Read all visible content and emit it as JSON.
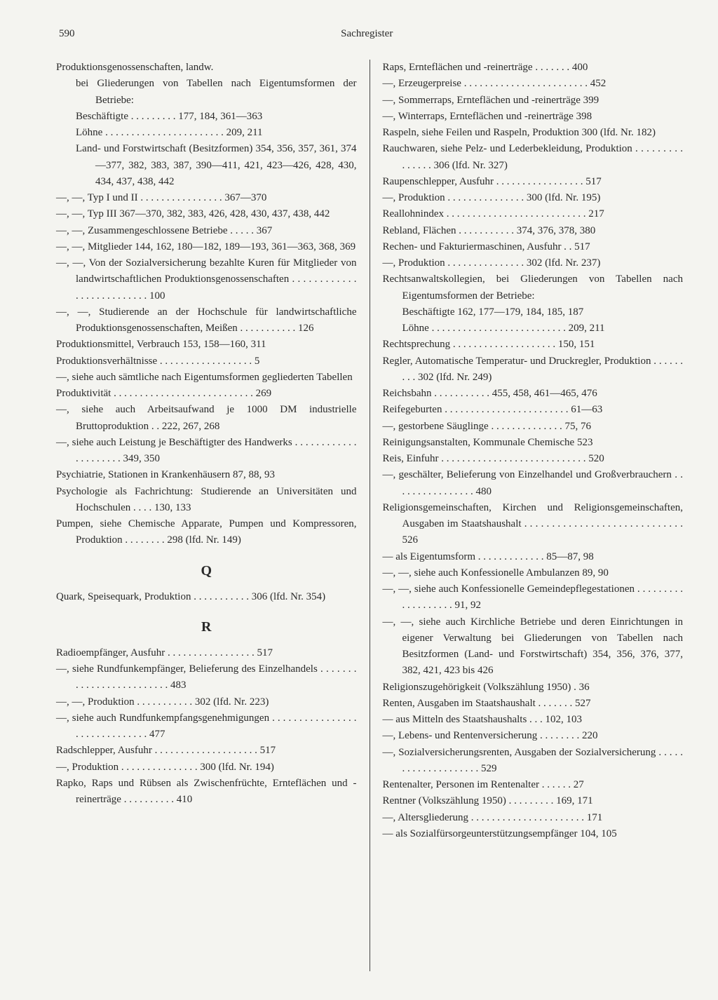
{
  "header": {
    "pageNum": "590",
    "title": "Sachregister"
  },
  "letters": {
    "Q": "Q",
    "R": "R"
  },
  "left": [
    {
      "cls": "entry",
      "t": "Produktionsgenossenschaften, landw."
    },
    {
      "cls": "entry sub",
      "t": "bei Gliederungen von Tabellen nach Eigentumsformen der Betriebe:"
    },
    {
      "cls": "entry sub",
      "t": "Beschäftigte . . . . . . . . . 177, 184, 361—363"
    },
    {
      "cls": "entry sub",
      "t": "Löhne . . . . . . . . . . . . . . . . . . . . . . . 209, 211"
    },
    {
      "cls": "entry sub",
      "t": "Land- und Forstwirtschaft (Besitzformen) 354, 356, 357, 361, 374—377, 382, 383, 387, 390—411, 421, 423—426, 428, 430, 434, 437, 438, 442"
    },
    {
      "cls": "entry",
      "t": "—, —, Typ I und II . . . . . . . . . . . . . . . . 367—370"
    },
    {
      "cls": "entry",
      "t": "—, —, Typ III 367—370, 382, 383, 426, 428, 430, 437, 438, 442"
    },
    {
      "cls": "entry",
      "t": "—, —, Zusammengeschlossene Betriebe . . . . . 367"
    },
    {
      "cls": "entry",
      "t": "—, —, Mitglieder 144, 162, 180—182, 189—193, 361—363, 368, 369"
    },
    {
      "cls": "entry",
      "t": "—, —, Von der Sozialversicherung bezahlte Kuren für Mitglieder von landwirtschaftlichen Produktionsgenossenschaften . . . . . . . . . . . . . . . . . . . . . . . . . . 100"
    },
    {
      "cls": "entry",
      "t": "—, —, Studierende an der Hochschule für landwirtschaftliche Produktionsgenossenschaften, Meißen . . . . . . . . . . . 126"
    },
    {
      "cls": "entry",
      "t": "Produktionsmittel, Verbrauch 153, 158—160, 311"
    },
    {
      "cls": "entry",
      "t": "Produktionsverhältnisse . . . . . . . . . . . . . . . . . .    5"
    },
    {
      "cls": "entry",
      "t": "—, siehe auch sämtliche nach Eigentumsformen gegliederten Tabellen"
    },
    {
      "cls": "entry",
      "t": "Produktivität . . . . . . . . . . . . . . . . . . . . . . . . . . . 269"
    },
    {
      "cls": "entry",
      "t": "—, siehe auch Arbeitsaufwand je 1000 DM industrielle Bruttoproduktion . . 222, 267, 268"
    },
    {
      "cls": "entry",
      "t": "—, siehe auch Leistung je Beschäftigter des Handwerks . . . . . . . . . . . . . . . . . . . . . 349, 350"
    },
    {
      "cls": "entry",
      "t": "Psychiatrie, Stationen in Krankenhäusern 87, 88, 93"
    },
    {
      "cls": "entry",
      "t": "Psychologie als Fachrichtung: Studierende an Universitäten und Hochschulen . . . . 130, 133"
    },
    {
      "cls": "entry",
      "t": "Pumpen, siehe Chemische Apparate, Pumpen und Kompressoren, Produktion . . . . . . . . 298 (lfd. Nr. 149)"
    },
    {
      "cls": "section-letter",
      "key": "Q"
    },
    {
      "cls": "entry",
      "t": "Quark, Speisequark, Produktion . . . . . . . . . . . 306 (lfd. Nr. 354)"
    },
    {
      "cls": "section-letter",
      "key": "R"
    },
    {
      "cls": "entry",
      "t": "Radioempfänger, Ausfuhr . . . . . . . . . . . . . . . . . 517"
    },
    {
      "cls": "entry",
      "t": "—, siehe Rundfunkempfänger, Belieferung des Einzelhandels . . . . . . . . . . . . . . . . . . . . . . . . . 483"
    },
    {
      "cls": "entry",
      "t": "—, —, Produktion . . . . . . . . . . . 302 (lfd. Nr. 223)"
    },
    {
      "cls": "entry",
      "t": "—, siehe auch Rundfunkempfangsgenehmigungen . . . . . . . . . . . . . . . . . . . . . . . . . . . . . . 477"
    },
    {
      "cls": "entry",
      "t": "Radschlepper, Ausfuhr . . . . . . . . . . . . . . . . . . . . 517"
    },
    {
      "cls": "entry",
      "t": "—, Produktion . . . . . . . . . . . . . . . 300 (lfd. Nr. 194)"
    },
    {
      "cls": "entry",
      "t": "Rapko, Raps und Rübsen als Zwischenfrüchte, Ernteflächen und -reinerträge . . . . . . . . . . 410"
    }
  ],
  "right": [
    {
      "cls": "entry",
      "t": "Raps, Ernteflächen und -reinerträge . . . . . . . 400"
    },
    {
      "cls": "entry",
      "t": "—, Erzeugerpreise . . . . . . . . . . . . . . . . . . . . . . . . 452"
    },
    {
      "cls": "entry",
      "t": "—, Sommerraps, Ernteflächen und -reinerträge 399"
    },
    {
      "cls": "entry",
      "t": "—, Winterraps, Ernteflächen und -reinerträge 398"
    },
    {
      "cls": "entry",
      "t": "Raspeln, siehe Feilen und Raspeln, Produktion 300 (lfd. Nr. 182)"
    },
    {
      "cls": "entry",
      "t": "Rauchwaren, siehe Pelz- und Lederbekleidung, Produktion . . . . . . . . . . . . . . . 306 (lfd. Nr. 327)"
    },
    {
      "cls": "entry",
      "t": "Raupenschlepper, Ausfuhr . . . . . . . . . . . . . . . . . 517"
    },
    {
      "cls": "entry",
      "t": "—, Produktion . . . . . . . . . . . . . . . 300 (lfd. Nr. 195)"
    },
    {
      "cls": "entry",
      "t": "Reallohnindex . . . . . . . . . . . . . . . . . . . . . . . . . . . 217"
    },
    {
      "cls": "entry",
      "t": "Rebland, Flächen . . . . . . . . . . . 374, 376, 378, 380"
    },
    {
      "cls": "entry",
      "t": "Rechen- und Fakturiermaschinen, Ausfuhr . . 517"
    },
    {
      "cls": "entry",
      "t": "—, Produktion . . . . . . . . . . . . . . . 302 (lfd. Nr. 237)"
    },
    {
      "cls": "entry",
      "t": "Rechtsanwaltskollegien, bei Gliederungen von Tabellen nach Eigentumsformen der Betriebe:"
    },
    {
      "cls": "entry sub",
      "t": "Beschäftigte 162, 177—179, 184, 185, 187"
    },
    {
      "cls": "entry sub",
      "t": "Löhne . . . . . . . . . . . . . . . . . . . . . . . . . . 209, 211"
    },
    {
      "cls": "entry",
      "t": "Rechtsprechung . . . . . . . . . . . . . . . . . . . . 150, 151"
    },
    {
      "cls": "entry",
      "t": "Regler, Automatische Temperatur- und Druckregler, Produktion . . . . . . . . . 302 (lfd. Nr. 249)"
    },
    {
      "cls": "entry",
      "t": "Reichsbahn . . . . . . . . . . . 455, 458, 461—465, 476"
    },
    {
      "cls": "entry",
      "t": "Reifegeburten . . . . . . . . . . . . . . . . . . . . . . . . 61—63"
    },
    {
      "cls": "entry",
      "t": "—, gestorbene Säuglinge . . . . . . . . . . . . . . 75,  76"
    },
    {
      "cls": "entry",
      "t": "Reinigungsanstalten, Kommunale Chemische 523"
    },
    {
      "cls": "entry",
      "t": "Reis, Einfuhr . . . . . . . . . . . . . . . . . . . . . . . . . . . . 520"
    },
    {
      "cls": "entry",
      "t": "—, geschälter, Belieferung von Einzelhandel und Großverbrauchern . . . . . . . . . . . . . . . . 480"
    },
    {
      "cls": "entry",
      "t": "Religionsgemeinschaften, Kirchen und Religionsgemeinschaften, Ausgaben im Staatshaushalt . . . . . . . . . . . . . . . . . . . . . . . . . . . . . 526"
    },
    {
      "cls": "entry",
      "t": "— als Eigentumsform . . . . . . . . . . . . . 85—87,  98"
    },
    {
      "cls": "entry",
      "t": "—, —, siehe auch Konfessionelle Ambulanzen 89, 90"
    },
    {
      "cls": "entry",
      "t": "—, —, siehe auch Konfessionelle Gemeindepflegestationen . . . . . . . . . . . . . . . . . . . 91,  92"
    },
    {
      "cls": "entry",
      "t": "—, —, siehe auch Kirchliche Betriebe und deren Einrichtungen in eigener Verwaltung bei Gliederungen von Tabellen nach Besitzformen (Land- und Forstwirtschaft) 354, 356, 376, 377, 382, 421, 423 bis 426"
    },
    {
      "cls": "entry",
      "t": "Religionszugehörigkeit (Volkszählung 1950) .   36"
    },
    {
      "cls": "entry",
      "t": "Renten, Ausgaben im Staatshaushalt . . . . . . . 527"
    },
    {
      "cls": "entry",
      "t": "— aus Mitteln des Staatshaushalts . . .  102, 103"
    },
    {
      "cls": "entry",
      "t": "—, Lebens- und Rentenversicherung . . . . . . . . 220"
    },
    {
      "cls": "entry",
      "t": "—, Sozialversicherungsrenten, Ausgaben der Sozialversicherung . . . . . . . . . . . . . . . . . . . . 529"
    },
    {
      "cls": "entry",
      "t": "Rentenalter, Personen im Rentenalter . . . . . .   27"
    },
    {
      "cls": "entry",
      "t": "Rentner (Volkszählung 1950) . . . . . . . . . 169, 171"
    },
    {
      "cls": "entry",
      "t": "—, Altersgliederung . . . . . . . . . . . . . . . . . . . . . . 171"
    },
    {
      "cls": "entry",
      "t": "— als Sozialfürsorgeunterstützungsempfänger 104, 105"
    }
  ]
}
